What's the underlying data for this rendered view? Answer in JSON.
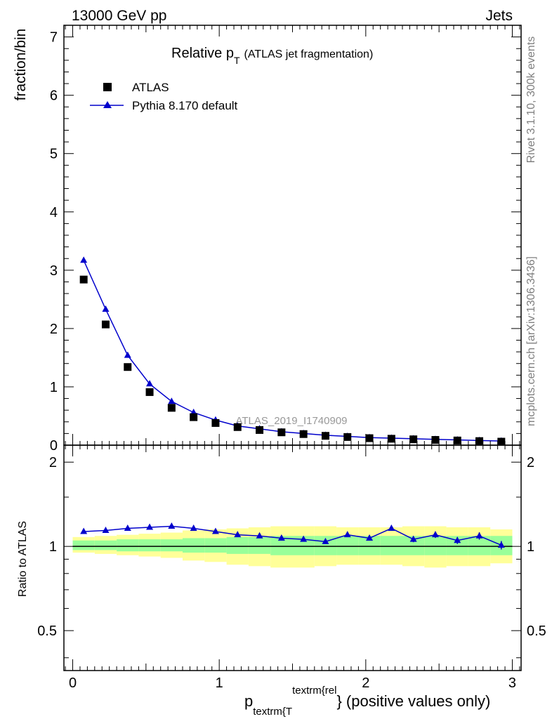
{
  "header": {
    "energy_label": "13000 GeV pp",
    "process_label": "Jets"
  },
  "side_text": {
    "rivet": "Rivet 3.1.10,  300k events",
    "source": "mcplots.cern.ch [arXiv:1306.3436]"
  },
  "colors": {
    "data": "#000000",
    "mc": "#0000cc",
    "band_inner": "#99ff99",
    "band_outer": "#ffff99",
    "watermark": "#999999"
  },
  "chart_data": [
    {
      "type": "scatter",
      "title_main": "Relative p",
      "title_sub": "T",
      "title_extra": "(ATLAS jet fragmentation)",
      "ylabel": "fraction/bin",
      "watermark": "ATLAS_2019_I1740909",
      "xlim": [
        -0.06,
        3.06
      ],
      "ylim": [
        0,
        7.2
      ],
      "yticks": [
        0,
        1,
        2,
        3,
        4,
        5,
        6,
        7
      ],
      "x": [
        0.075,
        0.225,
        0.375,
        0.525,
        0.675,
        0.825,
        0.975,
        1.125,
        1.275,
        1.425,
        1.575,
        1.725,
        1.875,
        2.025,
        2.175,
        2.325,
        2.475,
        2.625,
        2.775,
        2.925
      ],
      "series": [
        {
          "name": "ATLAS",
          "marker": "square",
          "values": [
            2.84,
            2.07,
            1.34,
            0.91,
            0.64,
            0.48,
            0.38,
            0.31,
            0.26,
            0.22,
            0.19,
            0.16,
            0.14,
            0.12,
            0.11,
            0.1,
            0.09,
            0.08,
            0.07,
            0.06
          ]
        },
        {
          "name": "Pythia 8.170 default",
          "marker": "triangle",
          "values": [
            3.17,
            2.33,
            1.54,
            1.05,
            0.75,
            0.56,
            0.43,
            0.33,
            0.28,
            0.23,
            0.2,
            0.17,
            0.15,
            0.13,
            0.12,
            0.11,
            0.1,
            0.09,
            0.08,
            0.07
          ]
        }
      ]
    },
    {
      "type": "line",
      "ylabel": "Ratio to ATLAS",
      "xlabel_main": "p",
      "xlabel_sub": "textrm{T",
      "xlabel_sup": "textrm{rel",
      "xlabel_tail": "} (positive values only)",
      "xlim": [
        -0.06,
        3.06
      ],
      "ylim": [
        0.36,
        2.3
      ],
      "xticks": [
        0,
        1,
        2,
        3
      ],
      "yticks": [
        0.5,
        1,
        2
      ],
      "x": [
        0.075,
        0.225,
        0.375,
        0.525,
        0.675,
        0.825,
        0.975,
        1.125,
        1.275,
        1.425,
        1.575,
        1.725,
        1.875,
        2.025,
        2.175,
        2.325,
        2.475,
        2.625,
        2.775,
        2.925
      ],
      "series": [
        {
          "name": "Pythia 8.170 default",
          "values": [
            1.13,
            1.14,
            1.16,
            1.17,
            1.18,
            1.16,
            1.13,
            1.1,
            1.09,
            1.07,
            1.06,
            1.04,
            1.1,
            1.07,
            1.16,
            1.06,
            1.1,
            1.05,
            1.09,
            1.01
          ],
          "errors": [
            0.005,
            0.005,
            0.005,
            0.005,
            0.006,
            0.006,
            0.007,
            0.008,
            0.009,
            0.01,
            0.012,
            0.014,
            0.016,
            0.018,
            0.022,
            0.025,
            0.028,
            0.03,
            0.033,
            0.035
          ]
        }
      ],
      "band_inner": {
        "low": [
          0.97,
          0.97,
          0.96,
          0.96,
          0.96,
          0.95,
          0.95,
          0.94,
          0.94,
          0.93,
          0.93,
          0.93,
          0.93,
          0.93,
          0.93,
          0.93,
          0.93,
          0.93,
          0.93,
          0.93
        ],
        "high": [
          1.05,
          1.05,
          1.06,
          1.06,
          1.06,
          1.07,
          1.07,
          1.08,
          1.08,
          1.09,
          1.09,
          1.09,
          1.09,
          1.09,
          1.09,
          1.09,
          1.09,
          1.09,
          1.09,
          1.09
        ]
      },
      "band_outer": {
        "low": [
          0.95,
          0.94,
          0.93,
          0.92,
          0.91,
          0.89,
          0.88,
          0.86,
          0.85,
          0.84,
          0.84,
          0.85,
          0.86,
          0.86,
          0.86,
          0.85,
          0.84,
          0.85,
          0.85,
          0.87
        ],
        "high": [
          1.08,
          1.09,
          1.1,
          1.11,
          1.12,
          1.14,
          1.15,
          1.16,
          1.17,
          1.18,
          1.18,
          1.18,
          1.17,
          1.17,
          1.17,
          1.18,
          1.18,
          1.17,
          1.17,
          1.15
        ]
      }
    }
  ]
}
